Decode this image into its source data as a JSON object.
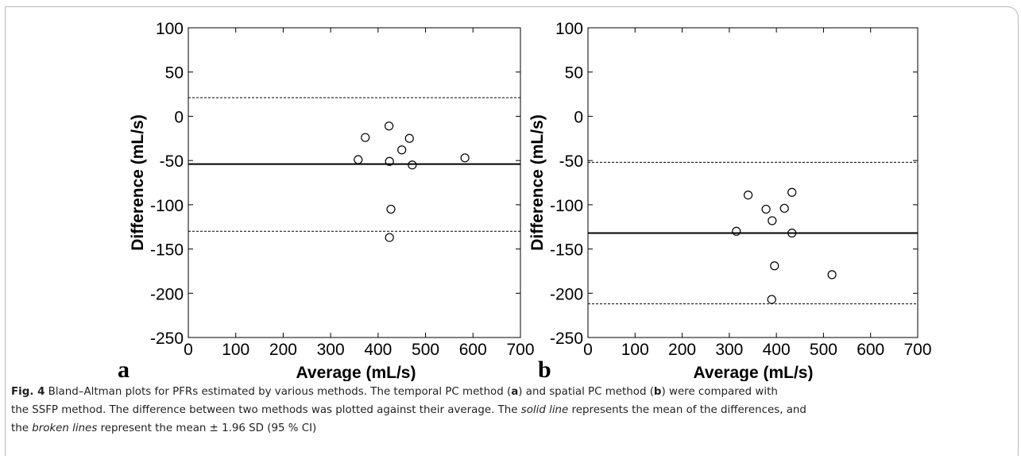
{
  "chart_data": [
    {
      "panel": "a",
      "type": "scatter",
      "xlabel": "Average (mL/s)",
      "ylabel": "Difference (mL/s)",
      "xlim": [
        0,
        700
      ],
      "ylim": [
        -250,
        100
      ],
      "xticks": [
        "0",
        "100",
        "200",
        "300",
        "400",
        "500",
        "600",
        "700"
      ],
      "yticks": [
        "100",
        "50",
        "0",
        "-50",
        "-100",
        "-150",
        "-200",
        "-250"
      ],
      "points": [
        {
          "x": 358,
          "y": -49
        },
        {
          "x": 373,
          "y": -24
        },
        {
          "x": 423,
          "y": -11
        },
        {
          "x": 424,
          "y": -51
        },
        {
          "x": 427,
          "y": -105
        },
        {
          "x": 424,
          "y": -137
        },
        {
          "x": 450,
          "y": -38
        },
        {
          "x": 466,
          "y": -25
        },
        {
          "x": 472,
          "y": -55
        },
        {
          "x": 583,
          "y": -47
        }
      ],
      "mean_line": -54,
      "limits": [
        21,
        -130
      ]
    },
    {
      "panel": "b",
      "type": "scatter",
      "xlabel": "Average (mL/s)",
      "ylabel": "Difference (mL/s)",
      "xlim": [
        0,
        700
      ],
      "ylim": [
        -250,
        100
      ],
      "xticks": [
        "0",
        "100",
        "200",
        "300",
        "400",
        "500",
        "600",
        "700"
      ],
      "yticks": [
        "100",
        "50",
        "0",
        "-50",
        "-100",
        "-150",
        "-200",
        "-250"
      ],
      "points": [
        {
          "x": 315,
          "y": -130
        },
        {
          "x": 340,
          "y": -89
        },
        {
          "x": 378,
          "y": -105
        },
        {
          "x": 391,
          "y": -118
        },
        {
          "x": 396,
          "y": -169
        },
        {
          "x": 390,
          "y": -207
        },
        {
          "x": 417,
          "y": -104
        },
        {
          "x": 433,
          "y": -86
        },
        {
          "x": 433,
          "y": -132
        },
        {
          "x": 518,
          "y": -179
        }
      ],
      "mean_line": -132,
      "limits": [
        -52,
        -212
      ]
    }
  ],
  "caption": {
    "label": "Fig. 4",
    "line1_a": " Bland–Altman plots for PFRs estimated by various methods. The temporal PC method (",
    "panel_a": "a",
    "line1_b": ") and spatial PC method (",
    "panel_b": "b",
    "line1_c": ") were compared with",
    "line2": "the SSFP method. The difference between two methods was plotted against their average. The ",
    "solid_line": "solid line",
    "line2_b": " represents the mean of the differences, and",
    "line3_a": "the ",
    "broken_lines": "broken lines",
    "line3_b": " represent the mean ± 1.96 SD (95 % CI)"
  }
}
